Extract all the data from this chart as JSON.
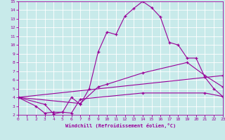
{
  "xlabel": "Windchill (Refroidissement éolien,°C)",
  "background_color": "#c8eaea",
  "line_color": "#990099",
  "grid_color": "#ffffff",
  "xlim": [
    0,
    23
  ],
  "ylim": [
    2,
    15
  ],
  "xticks": [
    0,
    1,
    2,
    3,
    4,
    5,
    6,
    7,
    8,
    9,
    10,
    11,
    12,
    13,
    14,
    15,
    16,
    17,
    18,
    19,
    20,
    21,
    22,
    23
  ],
  "yticks": [
    2,
    3,
    4,
    5,
    6,
    7,
    8,
    9,
    10,
    11,
    12,
    13,
    14,
    15
  ],
  "line1_x": [
    0,
    2,
    3,
    4,
    5,
    6,
    7,
    8,
    9,
    10,
    11,
    12,
    13,
    14,
    15,
    16,
    17,
    18,
    19,
    20,
    21,
    22,
    23
  ],
  "line1_y": [
    4,
    3,
    2.2,
    2.3,
    2.3,
    4,
    3.2,
    5,
    9.2,
    11.5,
    11.2,
    13.3,
    14.2,
    15,
    14.3,
    13.2,
    10.3,
    10,
    8.5,
    8.5,
    6.3,
    5.0,
    4.1
  ],
  "line2_x": [
    0,
    7,
    9,
    10,
    14,
    19,
    21,
    23
  ],
  "line2_y": [
    4,
    3.3,
    5.2,
    5.5,
    6.8,
    8.0,
    6.5,
    5.2
  ],
  "line3_x": [
    0,
    23
  ],
  "line3_y": [
    4,
    6.5
  ],
  "line4_x": [
    0,
    3,
    4,
    5,
    6,
    7,
    14,
    21,
    23
  ],
  "line4_y": [
    4,
    3.2,
    2.1,
    2.3,
    2.2,
    3.8,
    4.5,
    4.5,
    4.1
  ]
}
